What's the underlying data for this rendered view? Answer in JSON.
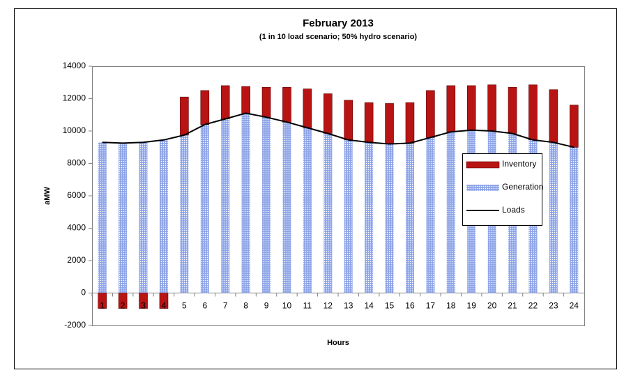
{
  "chart_data": {
    "type": "stacked-bar-line",
    "title": "February 2013",
    "subtitle": "(1 in 10 load scenario; 50% hydro scenario)",
    "x_label": "Hours",
    "y_label": "aMW",
    "categories": [
      "1",
      "2",
      "3",
      "4",
      "5",
      "6",
      "7",
      "8",
      "9",
      "10",
      "11",
      "12",
      "13",
      "14",
      "15",
      "16",
      "17",
      "18",
      "19",
      "20",
      "21",
      "22",
      "23",
      "24"
    ],
    "series": [
      {
        "name": "Inventory",
        "color": "#b81414",
        "kind": "bar",
        "values": [
          -950,
          -950,
          -950,
          -950,
          2350,
          2100,
          2050,
          1650,
          1850,
          2150,
          2400,
          2450,
          2450,
          2450,
          2500,
          2500,
          2900,
          2850,
          2750,
          2850,
          2850,
          3400,
          3250,
          2600
        ]
      },
      {
        "name": "Generation",
        "color": "#9fb4f0",
        "kind": "bar",
        "values": [
          9300,
          9250,
          9300,
          9450,
          9750,
          10400,
          10750,
          11100,
          10850,
          10550,
          10200,
          9850,
          9450,
          9300,
          9200,
          9250,
          9600,
          9950,
          10050,
          10000,
          9850,
          9450,
          9300,
          9000
        ]
      },
      {
        "name": "Loads",
        "color": "#000000",
        "kind": "line",
        "values": [
          9300,
          9250,
          9300,
          9450,
          9750,
          10400,
          10750,
          11100,
          10850,
          10550,
          10200,
          9850,
          9450,
          9300,
          9200,
          9250,
          9600,
          9950,
          10050,
          10000,
          9850,
          9450,
          9300,
          9000
        ]
      }
    ],
    "ylim": [
      -2000,
      14000
    ],
    "yticks": [
      -2000,
      0,
      2000,
      4000,
      6000,
      8000,
      10000,
      12000,
      14000
    ],
    "grid": false,
    "legend": "right"
  }
}
